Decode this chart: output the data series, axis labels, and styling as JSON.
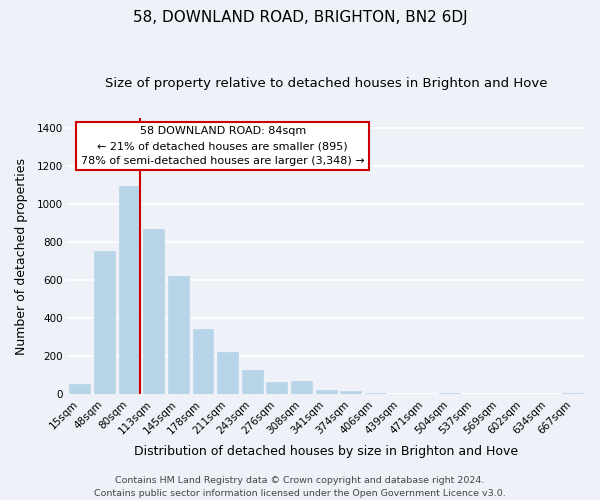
{
  "title": "58, DOWNLAND ROAD, BRIGHTON, BN2 6DJ",
  "subtitle": "Size of property relative to detached houses in Brighton and Hove",
  "xlabel": "Distribution of detached houses by size in Brighton and Hove",
  "ylabel": "Number of detached properties",
  "footer_line1": "Contains HM Land Registry data © Crown copyright and database right 2024.",
  "footer_line2": "Contains public sector information licensed under the Open Government Licence v3.0.",
  "categories": [
    "15sqm",
    "48sqm",
    "80sqm",
    "113sqm",
    "145sqm",
    "178sqm",
    "211sqm",
    "243sqm",
    "276sqm",
    "308sqm",
    "341sqm",
    "374sqm",
    "406sqm",
    "439sqm",
    "471sqm",
    "504sqm",
    "537sqm",
    "569sqm",
    "602sqm",
    "634sqm",
    "667sqm"
  ],
  "values": [
    55,
    750,
    1095,
    870,
    620,
    345,
    225,
    130,
    65,
    70,
    25,
    18,
    5,
    0,
    0,
    10,
    0,
    0,
    0,
    0,
    10
  ],
  "bar_color": "#b8d4e8",
  "bar_edge_color": "#b8d4e8",
  "highlight_bar_index": 2,
  "highlight_line_color": "#cc0000",
  "annotation_title": "58 DOWNLAND ROAD: 84sqm",
  "annotation_line1": "← 21% of detached houses are smaller (895)",
  "annotation_line2": "78% of semi-detached houses are larger (3,348) →",
  "annotation_box_color": "#ffffff",
  "annotation_border_color": "#cc0000",
  "ylim": [
    0,
    1450
  ],
  "yticks": [
    0,
    200,
    400,
    600,
    800,
    1000,
    1200,
    1400
  ],
  "background_color": "#eef2f8",
  "plot_background_color": "#eef2f8",
  "grid_color": "#ffffff",
  "title_fontsize": 11,
  "subtitle_fontsize": 9.5,
  "axis_label_fontsize": 9,
  "tick_fontsize": 7.5,
  "footer_fontsize": 6.8
}
